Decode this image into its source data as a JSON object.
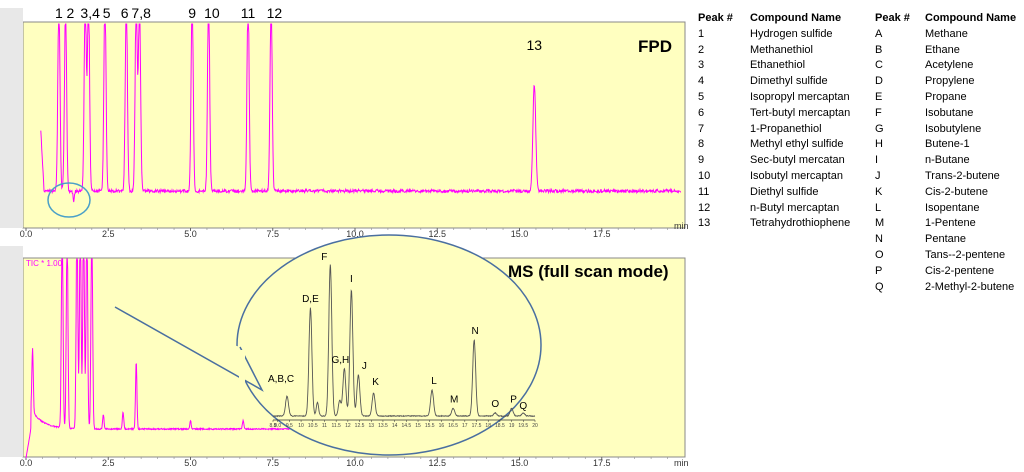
{
  "chart_data": [
    {
      "type": "line",
      "title": "FPD",
      "x_unit": "min",
      "xlim": [
        0,
        20
      ],
      "x_ticks": [
        "0.0",
        "2.5",
        "5.0",
        "7.5",
        "10.0",
        "12.5",
        "15.0",
        "17.5"
      ],
      "peak_labels": [
        "1",
        "2",
        "3,4",
        "5",
        "6",
        "7,8",
        "9",
        "10",
        "11",
        "12",
        "13"
      ],
      "peaks": [
        {
          "label": "1",
          "time": 1.0,
          "height": 1.0
        },
        {
          "label": "2",
          "time": 1.2,
          "height": 1.0
        },
        {
          "label": "3",
          "time": 1.8,
          "height": 1.0
        },
        {
          "label": "4",
          "time": 1.9,
          "height": 1.0
        },
        {
          "label": "5",
          "time": 2.4,
          "height": 1.0
        },
        {
          "label": "6",
          "time": 3.05,
          "height": 1.0
        },
        {
          "label": "7",
          "time": 3.35,
          "height": 1.0
        },
        {
          "label": "8",
          "time": 3.45,
          "height": 1.0
        },
        {
          "label": "9",
          "time": 5.05,
          "height": 1.0
        },
        {
          "label": "10",
          "time": 5.55,
          "height": 1.0
        },
        {
          "label": "11",
          "time": 6.75,
          "height": 1.0
        },
        {
          "label": "12",
          "time": 7.45,
          "height": 1.0
        },
        {
          "label": "13",
          "time": 15.45,
          "height": 0.78
        }
      ]
    },
    {
      "type": "line",
      "title": "MS (full scan mode)",
      "y_label": "TIC * 1.00",
      "x_unit": "min",
      "xlim": [
        0,
        20
      ],
      "x_ticks": [
        "0.0",
        "2.5",
        "5.0",
        "7.5",
        "10.0",
        "12.5",
        "15.0",
        "17.5"
      ],
      "peaks": [
        {
          "time": 0.2,
          "height": 0.3
        },
        {
          "time": 1.1,
          "height": 1.0
        },
        {
          "time": 1.25,
          "height": 0.95
        },
        {
          "time": 1.55,
          "height": 1.0
        },
        {
          "time": 1.65,
          "height": 1.0
        },
        {
          "time": 1.75,
          "height": 1.0
        },
        {
          "time": 1.85,
          "height": 1.0
        },
        {
          "time": 2.0,
          "height": 1.0
        },
        {
          "time": 2.35,
          "height": 0.07
        },
        {
          "time": 2.95,
          "height": 0.08
        },
        {
          "time": 3.35,
          "height": 0.32
        },
        {
          "time": 5.0,
          "height": 0.04
        },
        {
          "time": 6.6,
          "height": 0.04
        }
      ]
    },
    {
      "type": "line",
      "title": "",
      "x_ticks": [
        "8.8",
        "9.0",
        "9.5",
        "10",
        "10.5",
        "11",
        "11.5",
        "12",
        "12.5",
        "13",
        "13.5",
        "14",
        "14.5",
        "15",
        "15.5",
        "16",
        "16.5",
        "17",
        "17.5",
        "18",
        "18.5",
        "19",
        "19.5",
        "20"
      ],
      "peaks": [
        {
          "label": "A,B,C",
          "time": 9.4,
          "height": 0.13
        },
        {
          "label": "D,E",
          "time": 10.4,
          "height": 0.71
        },
        {
          "label": "F",
          "time": 11.25,
          "height": 1.0
        },
        {
          "label": "G,H",
          "time": 11.85,
          "height": 0.31
        },
        {
          "label": "I",
          "time": 12.15,
          "height": 0.83
        },
        {
          "label": "J",
          "time": 12.45,
          "height": 0.27
        },
        {
          "label": "K",
          "time": 13.1,
          "height": 0.15
        },
        {
          "label": "L",
          "time": 15.6,
          "height": 0.17
        },
        {
          "label": "M",
          "time": 16.5,
          "height": 0.05
        },
        {
          "label": "N",
          "time": 17.4,
          "height": 0.5
        },
        {
          "label": "O",
          "time": 18.3,
          "height": 0.02
        },
        {
          "label": "P",
          "time": 19.0,
          "height": 0.05
        },
        {
          "label": "Q",
          "time": 19.5,
          "height": 0.02
        }
      ]
    }
  ],
  "legend_left": {
    "headers": [
      "Peak #",
      "Compound Name"
    ],
    "rows": [
      [
        "1",
        "Hydrogen sulfide"
      ],
      [
        "2",
        "Methanethiol"
      ],
      [
        "3",
        "Ethanethiol"
      ],
      [
        "4",
        "Dimethyl sulfide"
      ],
      [
        "5",
        "Isopropyl mercaptan"
      ],
      [
        "6",
        "Tert-butyl mercaptan"
      ],
      [
        "7",
        "1-Propanethiol"
      ],
      [
        "8",
        "Methyl ethyl sulfide"
      ],
      [
        "9",
        "Sec-butyl mercatan"
      ],
      [
        "10",
        "Isobutyl mercaptan"
      ],
      [
        "11",
        "Diethyl sulfide"
      ],
      [
        "12",
        "n-Butyl mercaptan"
      ],
      [
        "13",
        "Tetrahydrothiophene"
      ]
    ]
  },
  "legend_right": {
    "headers": [
      "Peak #",
      "Compound Name"
    ],
    "rows": [
      [
        "A",
        "Methane"
      ],
      [
        "B",
        "Ethane"
      ],
      [
        "C",
        "Acetylene"
      ],
      [
        "D",
        "Propylene"
      ],
      [
        "E",
        "Propane"
      ],
      [
        "F",
        "Isobutane"
      ],
      [
        "G",
        "Isobutylene"
      ],
      [
        "H",
        "Butene-1"
      ],
      [
        "I",
        "n-Butane"
      ],
      [
        "J",
        "Trans-2-butene"
      ],
      [
        "K",
        "Cis-2-butene"
      ],
      [
        "L",
        "Isopentane"
      ],
      [
        "M",
        "1-Pentene"
      ],
      [
        "N",
        "Pentane"
      ],
      [
        "O",
        "Tans--2-pentene"
      ],
      [
        "P",
        "Cis-2-pentene"
      ],
      [
        "Q",
        "2-Methyl-2-butene"
      ]
    ]
  },
  "colors": {
    "trace": "#ff00ff",
    "panel_bg": "#ffffc0",
    "inset_trace": "#555555",
    "ellipse": "#4a6fa0",
    "circle": "#4aa0c8"
  }
}
